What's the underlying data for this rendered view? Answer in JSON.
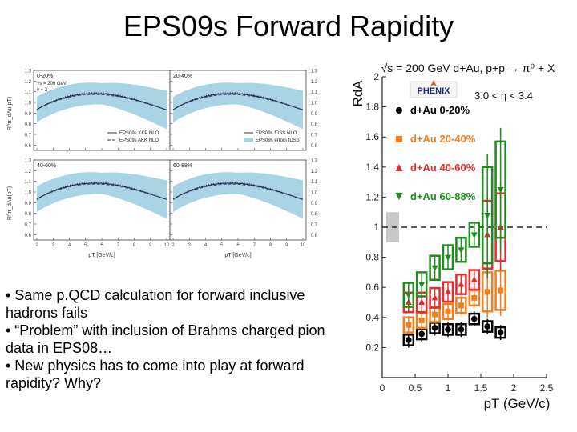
{
  "slide": {
    "title": "EPS09s Forward Rapidity",
    "bullets": [
      "• Same p.QCD calculation for forward inclusive hadrons fails",
      "• “Problem” with inclusion of Brahms charged pion data in EPS08…",
      "• New physics has to come into play at forward rapidity?  Why?"
    ]
  },
  "left_figure": {
    "y_label": "R^π_dAu(pT)",
    "x_label": "pT [GeV/c]",
    "ticks_y": [
      "0.6",
      "0.7",
      "0.8",
      "0.9",
      "1.0",
      "1.1",
      "1.2",
      "1.3"
    ],
    "ticks_x": [
      "2",
      "3",
      "4",
      "5",
      "6",
      "7",
      "8",
      "9",
      "10"
    ],
    "panels": [
      {
        "label": "0-20%",
        "extra": [
          "√s = 200 GeV",
          "y = 3"
        ],
        "legend": [
          "EPS09s KKP NLO",
          "EPS09s AKK NLO"
        ]
      },
      {
        "label": "20-40%",
        "extra": [],
        "legend": [
          "EPS09s fDSS NLO",
          "EPS09s errors fDSS"
        ]
      },
      {
        "label": "40-60%",
        "extra": [],
        "legend": []
      },
      {
        "label": "60-88%",
        "extra": [],
        "legend": []
      }
    ]
  },
  "chart_data": {
    "type": "scatter",
    "title": "√s = 200 GeV d+Au, p+p → π⁰ + X",
    "subtitle": "3.0 < η < 3.4",
    "logo": "PHENIX",
    "xlabel": "pT (GeV/c)",
    "ylabel": "RdA",
    "xlim": [
      0,
      2.5
    ],
    "ylim": [
      0,
      2
    ],
    "x_ticks": [
      "0",
      "0.5",
      "1",
      "1.5",
      "2",
      "2.5"
    ],
    "y_ticks": [
      "0.2",
      "0.4",
      "0.6",
      "0.8",
      "1",
      "1.2",
      "1.4",
      "1.6",
      "1.8",
      "2"
    ],
    "reference_line": 1,
    "series": [
      {
        "name": "d+Au 0-20%",
        "color": "#000000",
        "marker": "circle",
        "x": [
          0.4,
          0.6,
          0.8,
          1.0,
          1.2,
          1.4,
          1.6,
          1.8
        ],
        "y": [
          0.25,
          0.29,
          0.33,
          0.32,
          0.32,
          0.39,
          0.34,
          0.3
        ]
      },
      {
        "name": "d+Au 20-40%",
        "color": "#f27c1e",
        "marker": "square",
        "x": [
          0.4,
          0.6,
          0.8,
          1.0,
          1.2,
          1.4,
          1.6,
          1.8
        ],
        "y": [
          0.35,
          0.38,
          0.42,
          0.44,
          0.48,
          0.53,
          0.57,
          0.58
        ]
      },
      {
        "name": "d+Au 40-60%",
        "color": "#e52b2b",
        "marker": "triangle-up",
        "x": [
          0.4,
          0.6,
          0.8,
          1.0,
          1.2,
          1.4,
          1.6,
          1.8
        ],
        "y": [
          0.5,
          0.5,
          0.53,
          0.57,
          0.62,
          0.65,
          0.95,
          1.0
        ]
      },
      {
        "name": "d+Au 60-88%",
        "color": "#1e8c1e",
        "marker": "triangle-down",
        "x": [
          0.4,
          0.6,
          0.8,
          1.0,
          1.2,
          1.4,
          1.6,
          1.8
        ],
        "y": [
          0.55,
          0.62,
          0.73,
          0.8,
          0.85,
          0.95,
          1.08,
          1.25
        ]
      }
    ]
  }
}
